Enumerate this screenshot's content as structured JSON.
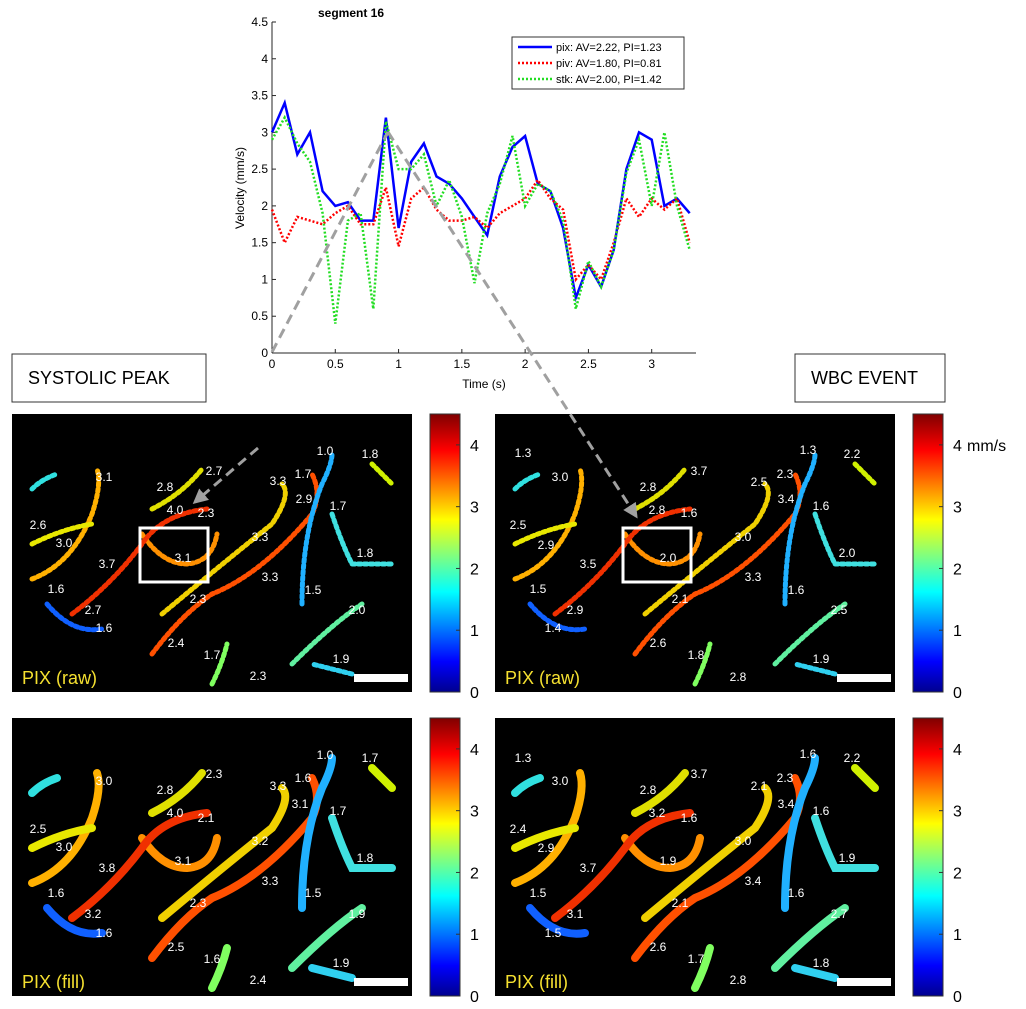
{
  "chart_data": {
    "type": "line",
    "title": "segment 16",
    "x_label": "Time (s)",
    "y_label": "Velocity (mm/s)",
    "x": [
      0,
      0.1,
      0.2,
      0.3,
      0.4,
      0.5,
      0.6,
      0.7,
      0.8,
      0.9,
      1.0,
      1.1,
      1.2,
      1.3,
      1.4,
      1.5,
      1.6,
      1.7,
      1.8,
      1.9,
      2.0,
      2.1,
      2.2,
      2.3,
      2.4,
      2.5,
      2.6,
      2.7,
      2.8,
      2.9,
      3.0,
      3.1,
      3.2,
      3.3
    ],
    "series": [
      {
        "name": "pix: AV=2.22, PI=1.23",
        "color": "#0000ff",
        "style": "solid",
        "values": [
          3.0,
          3.4,
          2.7,
          3.0,
          2.2,
          2.0,
          2.05,
          1.8,
          1.8,
          3.2,
          1.7,
          2.6,
          2.85,
          2.4,
          2.3,
          2.1,
          1.85,
          1.6,
          2.4,
          2.8,
          2.95,
          2.3,
          2.2,
          1.7,
          0.75,
          1.2,
          0.9,
          1.4,
          2.5,
          3.0,
          2.9,
          2.0,
          2.1,
          1.9
        ]
      },
      {
        "name": "piv: AV=1.80, PI=0.81",
        "color": "#ff0000",
        "style": "dotted",
        "values": [
          1.95,
          1.5,
          1.85,
          1.8,
          1.75,
          1.9,
          2.0,
          1.75,
          1.75,
          2.25,
          1.45,
          2.1,
          2.25,
          1.95,
          1.8,
          1.8,
          1.85,
          1.7,
          1.9,
          2.0,
          2.1,
          2.35,
          2.1,
          1.95,
          1.0,
          1.2,
          1.0,
          1.5,
          2.1,
          1.85,
          2.1,
          1.95,
          2.1,
          1.5
        ]
      },
      {
        "name": "stk: AV=2.00, PI=1.42",
        "color": "#22dd22",
        "style": "dotted",
        "values": [
          2.9,
          3.2,
          2.85,
          2.6,
          1.9,
          0.4,
          1.8,
          1.9,
          0.6,
          3.15,
          2.5,
          2.5,
          2.7,
          2.0,
          2.35,
          1.85,
          0.95,
          1.9,
          2.3,
          2.95,
          2.0,
          2.3,
          2.2,
          1.8,
          0.6,
          1.25,
          0.9,
          1.4,
          2.45,
          2.9,
          2.0,
          3.0,
          2.0,
          1.4
        ]
      }
    ],
    "xlim": [
      0,
      3.35
    ],
    "ylim": [
      0,
      4.5
    ],
    "xticks": [
      0,
      0.5,
      1,
      1.5,
      2,
      2.5,
      3
    ],
    "yticks": [
      0,
      0.5,
      1,
      1.5,
      2,
      2.5,
      3,
      3.5,
      4,
      4.5
    ],
    "legend": "upper right"
  },
  "headers": [
    "SYSTOLIC PEAK",
    "WBC EVENT"
  ],
  "colorbar": {
    "lim": [
      0,
      4.5
    ],
    "ticks": [
      0,
      1,
      2,
      3,
      4
    ],
    "unit": "mm/s"
  },
  "panels": [
    {
      "label": "PIX (raw)",
      "vessel_labels": [
        "1.0",
        "1.8",
        "3.1",
        "2.7",
        "2.8",
        "3.3",
        "1.7",
        "2.9",
        "4.0",
        "2.3",
        "2.6",
        "1.7",
        "3.0",
        "3.3",
        "3.7",
        "3.1",
        "1.8",
        "3.3",
        "1.6",
        "2.3",
        "1.5",
        "2.7",
        "2.0",
        "1.6",
        "2.4",
        "1.7",
        "1.9",
        "2.3"
      ]
    },
    {
      "label": "PIX (raw)",
      "vessel_labels": [
        "1.3",
        "1.3",
        "2.2",
        "3.0",
        "3.7",
        "2.5",
        "2.3",
        "2.8",
        "3.4",
        "2.8",
        "1.6",
        "1.6",
        "2.5",
        "2.9",
        "3.0",
        "2.0",
        "3.5",
        "2.0",
        "3.3",
        "1.5",
        "2.1",
        "1.6",
        "2.9",
        "2.5",
        "1.4",
        "2.6",
        "1.8",
        "1.9",
        "2.8"
      ]
    },
    {
      "label": "PIX (fill)",
      "vessel_labels": [
        "1.0",
        "1.7",
        "3.0",
        "2.3",
        "2.8",
        "3.3",
        "1.6",
        "3.1",
        "1.7",
        "4.0",
        "2.1",
        "2.5",
        "3.2",
        "3.0",
        "3.1",
        "1.8",
        "3.8",
        "3.3",
        "2.3",
        "1.6",
        "1.5",
        "1.9",
        "3.2",
        "1.6",
        "2.5",
        "1.6",
        "1.9",
        "2.4"
      ]
    },
    {
      "label": "PIX (fill)",
      "vessel_labels": [
        "1.3",
        "1.6",
        "2.2",
        "3.0",
        "3.7",
        "2.3",
        "2.1",
        "2.8",
        "3.4",
        "3.2",
        "1.6",
        "1.6",
        "2.4",
        "3.0",
        "2.9",
        "1.9",
        "1.9",
        "3.7",
        "3.4",
        "1.5",
        "2.1",
        "1.6",
        "3.1",
        "2.7",
        "1.5",
        "2.6",
        "1.7",
        "1.8",
        "2.8"
      ]
    }
  ]
}
